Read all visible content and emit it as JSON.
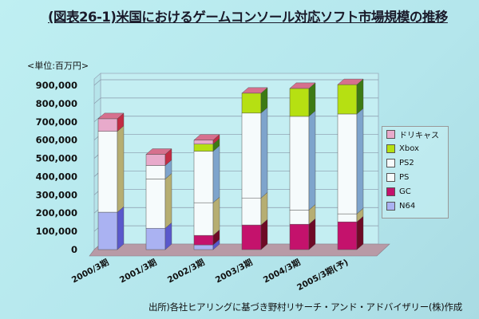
{
  "title": "(図表26-1)米国におけるゲームコンソール対応ソフト市場規模の推移",
  "unit": "<単位:百万円>",
  "footnote": "出所)各社ヒアリングに基づき野村リサーチ・アンド・アドバイザリー(株)作成",
  "chart_data": {
    "type": "bar",
    "stacked": true,
    "title": "(図表26-1)米国におけるゲームコンソール対応ソフト市場規模の推移",
    "xlabel": "",
    "ylabel": "<単位:百万円>",
    "ylim": [
      0,
      900000
    ],
    "yticks": [
      "0",
      "100,000",
      "200,000",
      "300,000",
      "400,000",
      "500,000",
      "600,000",
      "700,000",
      "800,000",
      "900,000"
    ],
    "grid": true,
    "legend_position": "right",
    "categories": [
      "2000/3期",
      "2001/3期",
      "2002/3期",
      "2003/3期",
      "2004/3期",
      "2005/3期(予)"
    ],
    "series": [
      {
        "name": "N64",
        "color": "#aab2f2",
        "side": "#5a58cc",
        "values": [
          205000,
          117000,
          26000,
          0,
          0,
          0
        ]
      },
      {
        "name": "GC",
        "color": "#c4126c",
        "side": "#6e0a26",
        "values": [
          0,
          0,
          52000,
          135000,
          139000,
          152000
        ]
      },
      {
        "name": "PS",
        "color": "#f6fbfc",
        "side": "#b6ae72",
        "values": [
          443000,
          270000,
          179000,
          148000,
          78000,
          44000
        ]
      },
      {
        "name": "PS2",
        "color": "#f6fbfc",
        "side": "#7ea4cc",
        "values": [
          0,
          74000,
          282000,
          465000,
          513000,
          547000
        ]
      },
      {
        "name": "Xbox",
        "color": "#b6e012",
        "side": "#3c7a14",
        "values": [
          0,
          0,
          39000,
          109000,
          153000,
          161000
        ]
      },
      {
        "name": "ドリキャス",
        "color": "#e8aacb",
        "side": "#c22c44",
        "values": [
          69000,
          61000,
          22000,
          0,
          0,
          0
        ]
      }
    ]
  }
}
